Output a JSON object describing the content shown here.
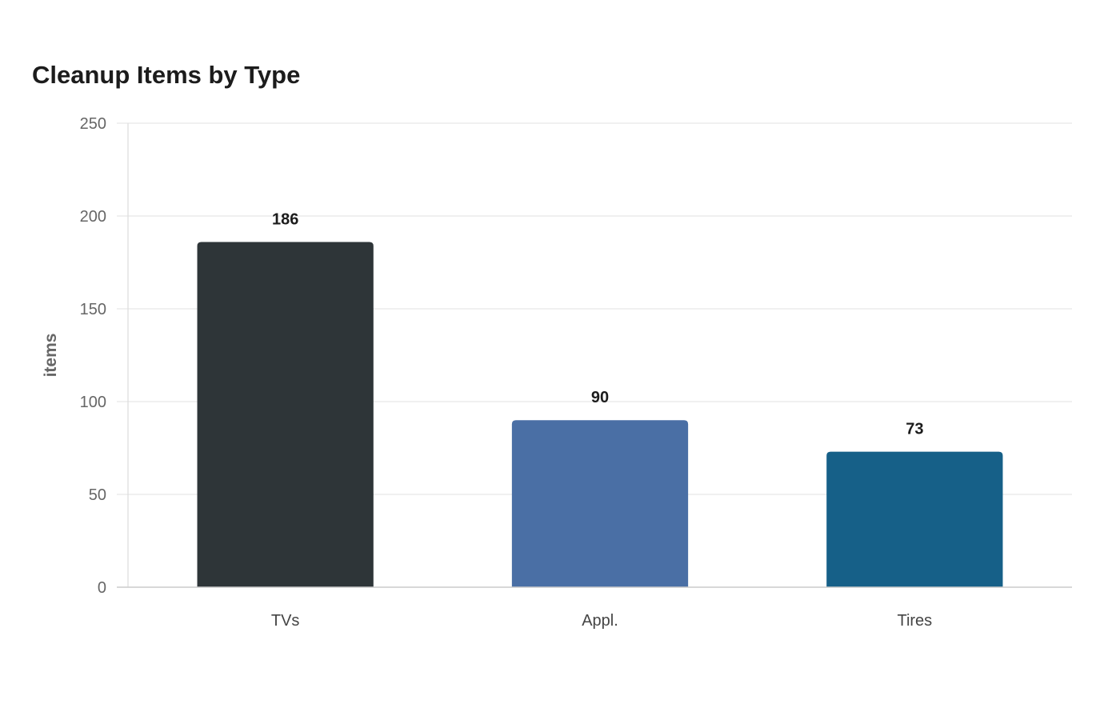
{
  "chart_data": {
    "type": "bar",
    "title": "Cleanup Items by Type",
    "xlabel": "",
    "ylabel": "items",
    "categories": [
      "TVs",
      "Appl.",
      "Tires"
    ],
    "values": [
      186,
      90,
      73
    ],
    "value_labels": [
      "186",
      "90",
      "73"
    ],
    "bar_colors": [
      "#2e3538",
      "#4a6fa5",
      "#166088"
    ],
    "ylim": [
      0,
      250
    ],
    "yticks": [
      0,
      50,
      100,
      150,
      200,
      250
    ],
    "ytick_labels": [
      "0",
      "50",
      "100",
      "150",
      "200",
      "250"
    ],
    "grid": true,
    "legend": "none"
  }
}
